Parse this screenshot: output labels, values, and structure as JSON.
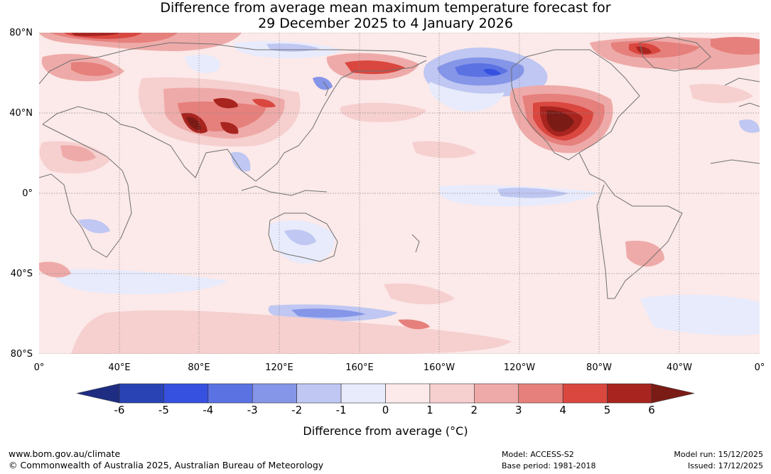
{
  "title_line1": "Difference from average mean maximum temperature forecast for",
  "title_line2": "29 December 2025 to 4 January 2026",
  "lat_labels": [
    "80°N",
    "40°N",
    "0°",
    "40°S",
    "80°S"
  ],
  "lon_labels": [
    "0°",
    "40°E",
    "80°E",
    "120°E",
    "160°E",
    "160°W",
    "120°W",
    "80°W",
    "40°W",
    "0°"
  ],
  "colorbar": {
    "ticks": [
      "-6",
      "-5",
      "-4",
      "-3",
      "-2",
      "-1",
      "0",
      "1",
      "2",
      "3",
      "4",
      "5",
      "6"
    ],
    "colors": [
      "#1e2d82",
      "#2a43b4",
      "#3650e0",
      "#5b72e3",
      "#8595e8",
      "#bfc7f2",
      "#e8ebfb",
      "#fce9e9",
      "#f6cfcf",
      "#eeaaa8",
      "#e6807c",
      "#d9473f",
      "#a8241f",
      "#7b1b16"
    ],
    "label": "Difference from average (°C)"
  },
  "footer": {
    "website": "www.bom.gov.au/climate",
    "copyright": "© Commonwealth of Australia 2025, Australian Bureau of Meteorology",
    "model": "Model: ACCESS-S2",
    "base_period": "Base period: 1981-2018",
    "model_run": "Model run: 15/12/2025",
    "issued": "Issued: 17/12/2025"
  }
}
